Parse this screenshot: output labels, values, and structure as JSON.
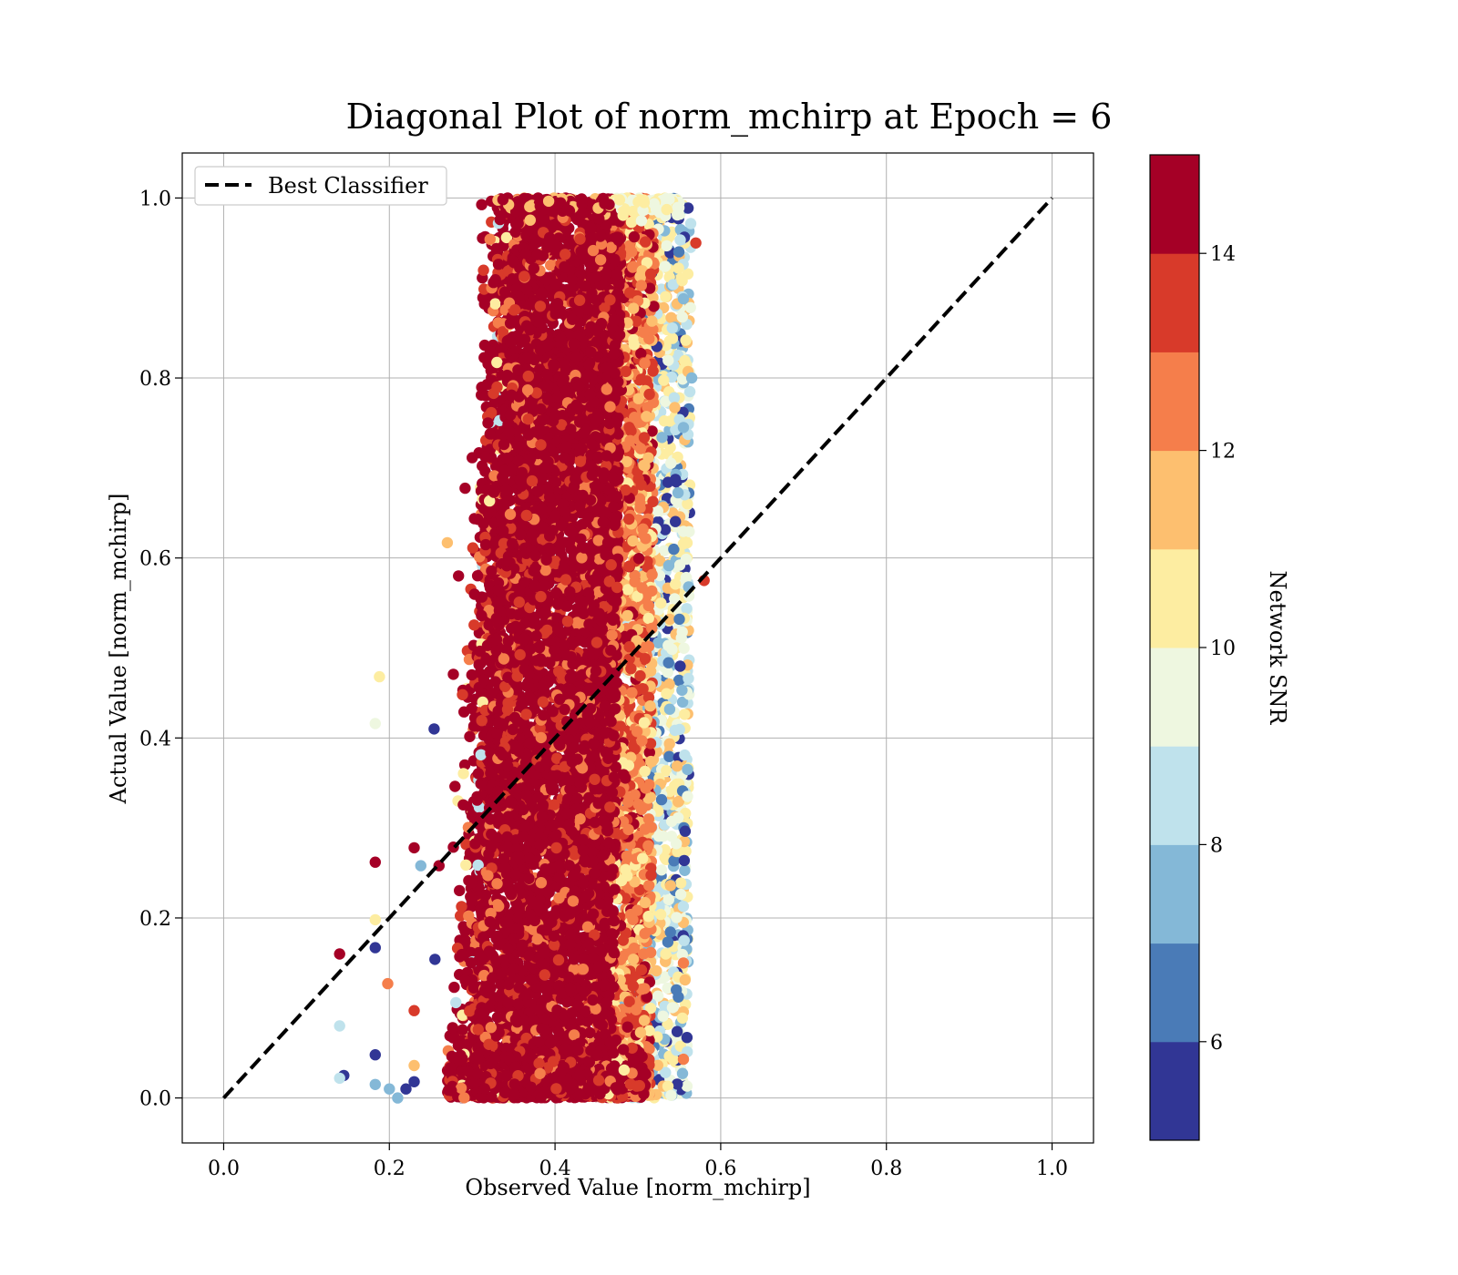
{
  "chart_data": {
    "type": "scatter",
    "title": "Diagonal Plot of norm_mchirp at Epoch = 6",
    "xlabel": "Observed Value [norm_mchirp]",
    "ylabel": "Actual Value [norm_mchirp]",
    "xlim": [
      -0.05,
      1.05
    ],
    "ylim": [
      -0.05,
      1.05
    ],
    "x_ticks": [
      "0.0",
      "0.2",
      "0.4",
      "0.6",
      "0.8",
      "1.0"
    ],
    "y_ticks": [
      "0.0",
      "0.2",
      "0.4",
      "0.6",
      "0.8",
      "1.0"
    ],
    "grid": true,
    "legend": {
      "placement": "upper-left",
      "entries": [
        {
          "label": "Best Classifier",
          "style": "dashed",
          "color": "#000000"
        }
      ]
    },
    "reference_line": {
      "name": "Best Classifier",
      "x": [
        0.0,
        1.0
      ],
      "y": [
        0.0,
        1.0
      ]
    },
    "colorbar": {
      "label": "Network SNR",
      "range": [
        5,
        15
      ],
      "ticks": [
        "6",
        "8",
        "10",
        "12",
        "14"
      ],
      "bins": [
        {
          "from": 5,
          "to": 6,
          "color": "#313695"
        },
        {
          "from": 6,
          "to": 7,
          "color": "#4a7bb7"
        },
        {
          "from": 7,
          "to": 8,
          "color": "#84b8d7"
        },
        {
          "from": 8,
          "to": 9,
          "color": "#bfe2ec"
        },
        {
          "from": 9,
          "to": 10,
          "color": "#eef7e0"
        },
        {
          "from": 10,
          "to": 11,
          "color": "#fdeda1"
        },
        {
          "from": 11,
          "to": 12,
          "color": "#fdbf6f"
        },
        {
          "from": 12,
          "to": 13,
          "color": "#f57e4b"
        },
        {
          "from": 13,
          "to": 14,
          "color": "#d83a2a"
        },
        {
          "from": 14,
          "to": 15,
          "color": "#a50026"
        }
      ]
    },
    "point_cloud": {
      "y_range": [
        0.0,
        1.0
      ],
      "bulk_x_range_high_snr": [
        0.3,
        0.47
      ],
      "edge_x_range_low_snr": [
        0.47,
        0.56
      ],
      "dominant_snr": "14+"
    },
    "notable_points": [
      {
        "x": 0.14,
        "y": 0.16,
        "snr": 15
      },
      {
        "x": 0.14,
        "y": 0.08,
        "snr": 8.5
      },
      {
        "x": 0.145,
        "y": 0.025,
        "snr": 5.5
      },
      {
        "x": 0.14,
        "y": 0.022,
        "snr": 8.5
      },
      {
        "x": 0.183,
        "y": 0.262,
        "snr": 15
      },
      {
        "x": 0.183,
        "y": 0.167,
        "snr": 5.5
      },
      {
        "x": 0.183,
        "y": 0.198,
        "snr": 10.5
      },
      {
        "x": 0.183,
        "y": 0.048,
        "snr": 5.5
      },
      {
        "x": 0.183,
        "y": 0.015,
        "snr": 7.5
      },
      {
        "x": 0.188,
        "y": 0.468,
        "snr": 10.5
      },
      {
        "x": 0.183,
        "y": 0.416,
        "snr": 9.5
      },
      {
        "x": 0.198,
        "y": 0.127,
        "snr": 12.5
      },
      {
        "x": 0.2,
        "y": 0.01,
        "snr": 7.5
      },
      {
        "x": 0.21,
        "y": 0.0,
        "snr": 7.5
      },
      {
        "x": 0.22,
        "y": 0.01,
        "snr": 5.5
      },
      {
        "x": 0.23,
        "y": 0.278,
        "snr": 15
      },
      {
        "x": 0.23,
        "y": 0.097,
        "snr": 13.5
      },
      {
        "x": 0.23,
        "y": 0.036,
        "snr": 11.5
      },
      {
        "x": 0.23,
        "y": 0.018,
        "snr": 5.5
      },
      {
        "x": 0.238,
        "y": 0.258,
        "snr": 7.5
      },
      {
        "x": 0.254,
        "y": 0.41,
        "snr": 5.5
      },
      {
        "x": 0.255,
        "y": 0.154,
        "snr": 5.5
      },
      {
        "x": 0.26,
        "y": 0.258,
        "snr": 15
      },
      {
        "x": 0.27,
        "y": 0.617,
        "snr": 11.5
      },
      {
        "x": 0.57,
        "y": 0.95,
        "snr": 13.5
      },
      {
        "x": 0.58,
        "y": 0.575,
        "snr": 13.5
      },
      {
        "x": 0.565,
        "y": 0.8,
        "snr": 7.5
      },
      {
        "x": 0.555,
        "y": 0.15,
        "snr": 12.5
      },
      {
        "x": 0.555,
        "y": 0.888,
        "snr": 7.5
      },
      {
        "x": 0.555,
        "y": 0.745,
        "snr": 7.5
      },
      {
        "x": 0.55,
        "y": 0.532,
        "snr": 6.5
      },
      {
        "x": 0.56,
        "y": 0.365,
        "snr": 7.5
      },
      {
        "x": 0.56,
        "y": 0.335,
        "snr": 9.5
      },
      {
        "x": 0.555,
        "y": 0.043,
        "snr": 12.5
      }
    ]
  }
}
